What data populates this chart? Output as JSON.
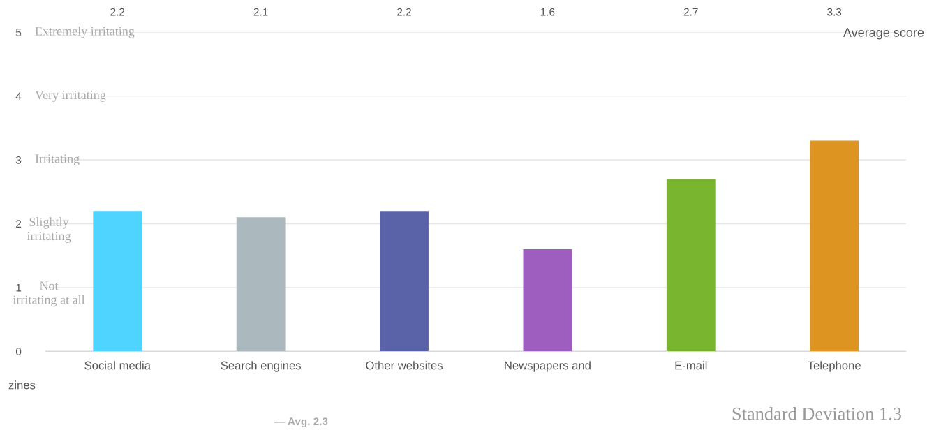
{
  "chart_data": {
    "type": "bar",
    "categories": [
      "Social media",
      "Search engines",
      "Other websites",
      "Newspapers and",
      "E-mail",
      "Telephone"
    ],
    "values": [
      2.2,
      2.1,
      2.2,
      1.6,
      2.7,
      3.3
    ],
    "colors": [
      "#4fd3ff",
      "#abb8bd",
      "#5a62a8",
      "#9d5ebf",
      "#7ab52f",
      "#dd9420"
    ],
    "data_labels": true,
    "ylim": [
      0,
      5
    ],
    "yticks": [
      0,
      1,
      2,
      3,
      4,
      5
    ],
    "grid": "y",
    "legend": false,
    "annotations": [
      "Extremely irritating",
      "Very irritating",
      "Irritating",
      "Slightly\nirritating",
      "Not\nirritating at all",
      "Average score",
      "zines",
      "— Avg. 2.3",
      "Standard Deviation 1.3"
    ]
  }
}
